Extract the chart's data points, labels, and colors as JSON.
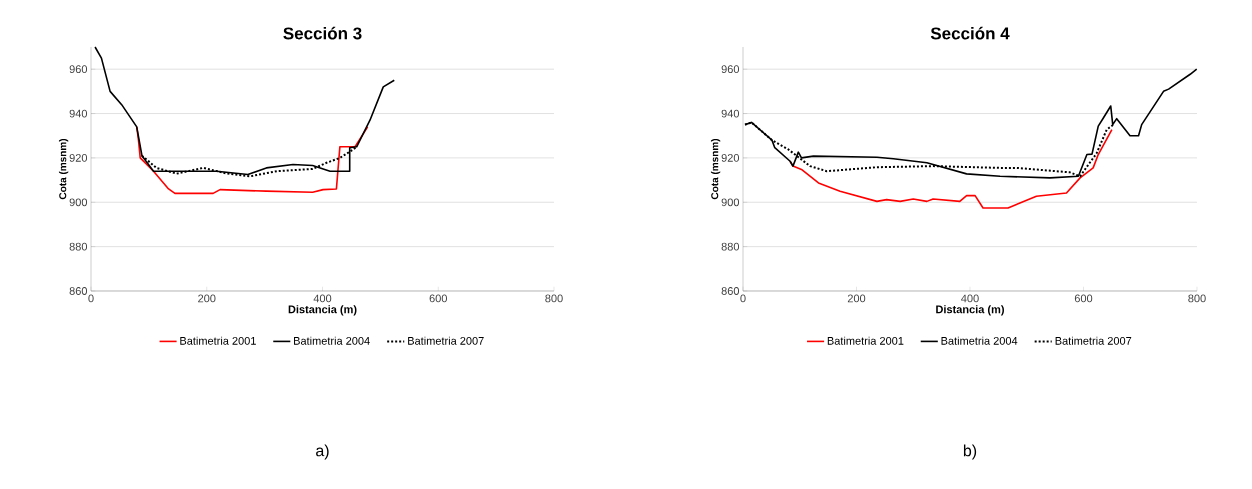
{
  "chart_data": [
    {
      "type": "line",
      "title": "Sección 3",
      "xlabel": "Distancia (m)",
      "ylabel": "Cota (msnm)",
      "xlim": [
        0,
        800
      ],
      "ylim": [
        860,
        970
      ],
      "xticks": [
        0,
        200,
        400,
        600,
        800
      ],
      "yticks": [
        860,
        880,
        900,
        920,
        940,
        960
      ],
      "grid": "y",
      "legend": "bottom",
      "marker": "none",
      "annotations": [
        "a)"
      ],
      "series": [
        {
          "name": "Batimetria 2001",
          "color": "#ff0000",
          "line_style": "solid",
          "x": [
            79,
            82,
            85,
            108,
            134,
            145,
            211,
            223,
            303,
            383,
            401,
            424,
            430,
            456,
            478
          ],
          "values": [
            934,
            928,
            920,
            914,
            906,
            904,
            904,
            905.7,
            905,
            904.5,
            905.7,
            906,
            925,
            925,
            934
          ]
        },
        {
          "name": "Batimetria 2004",
          "color": "#000000",
          "line_style": "solid",
          "x": [
            7,
            18,
            33,
            53,
            79,
            88,
            108,
            217,
            271,
            303,
            349,
            383,
            413,
            447,
            447,
            459,
            482,
            505,
            524
          ],
          "values": [
            970,
            965,
            950,
            944,
            934,
            921,
            914,
            914,
            912.5,
            915.5,
            917,
            916.6,
            914,
            914,
            924.6,
            925,
            937,
            952,
            955
          ]
        },
        {
          "name": "Batimetria 2007",
          "color": "#000000",
          "line_style": "dotted",
          "x": [
            88,
            113,
            148,
            194,
            234,
            275,
            321,
            383,
            407,
            430,
            453,
            459
          ],
          "values": [
            921,
            915.5,
            912.9,
            915.5,
            913,
            911.7,
            914,
            915,
            917.8,
            920,
            923.8,
            925
          ]
        }
      ]
    },
    {
      "type": "line",
      "title": "Sección 4",
      "xlabel": "Distancia (m)",
      "ylabel": "Cota (msnm)",
      "xlim": [
        0,
        800
      ],
      "ylim": [
        860,
        970
      ],
      "xticks": [
        0,
        200,
        400,
        600,
        800
      ],
      "yticks": [
        860,
        880,
        900,
        920,
        940,
        960
      ],
      "grid": "y",
      "legend": "bottom",
      "marker": "none",
      "annotations": [
        "b)"
      ],
      "series": [
        {
          "name": "Batimetria 2001",
          "color": "#ff0000",
          "line_style": "solid",
          "x": [
            83,
            88,
            103,
            133,
            171,
            236,
            253,
            277,
            300,
            324,
            335,
            382,
            394,
            409,
            423,
            467,
            517,
            570,
            594,
            617,
            626,
            650
          ],
          "values": [
            918.5,
            916.3,
            914.8,
            908.7,
            905,
            900.4,
            901.2,
            900.4,
            901.5,
            900.4,
            901.5,
            900.4,
            903,
            903,
            897.4,
            897.4,
            902.7,
            904.2,
            911,
            915.5,
            921.5,
            932.8
          ]
        },
        {
          "name": "Batimetria 2004",
          "color": "#000000",
          "line_style": "solid",
          "x": [
            3.5,
            15,
            51,
            56,
            83,
            88,
            97.5,
            103,
            124,
            236,
            265,
            324,
            394,
            453,
            541,
            591,
            606,
            615,
            626,
            635,
            648,
            651.5,
            658.5,
            682,
            697,
            702.5,
            741,
            750,
            788,
            799.5
          ],
          "values": [
            935,
            936,
            928,
            924.6,
            918.5,
            916.3,
            922.6,
            920,
            920.8,
            920.3,
            919.6,
            917.8,
            912.8,
            911.7,
            911,
            911.7,
            921.5,
            921.7,
            934.3,
            938,
            943.4,
            935,
            937.7,
            930,
            930,
            935,
            950,
            951,
            957.7,
            960
          ]
        },
        {
          "name": "Batimetria 2007",
          "color": "#000000",
          "line_style": "dotted",
          "x": [
            3.5,
            15,
            51,
            80,
            118,
            147.5,
            236,
            335,
            453,
            482,
            576,
            594,
            611,
            623,
            641,
            653
          ],
          "values": [
            935,
            936,
            928,
            923.8,
            916.3,
            914,
            915.8,
            916.3,
            915.5,
            915.5,
            913.5,
            911.7,
            917.8,
            922,
            932.8,
            935
          ]
        }
      ]
    }
  ]
}
